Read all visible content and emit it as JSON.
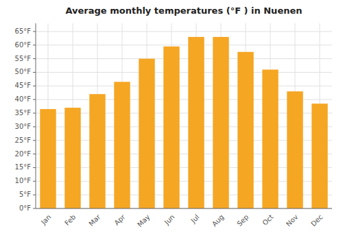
{
  "chart_data": {
    "type": "bar",
    "title": "Average monthly temperatures (°F ) in Nuenen",
    "categories": [
      "Jan",
      "Feb",
      "Mar",
      "Apr",
      "May",
      "Jun",
      "Jul",
      "Aug",
      "Sep",
      "Oct",
      "Nov",
      "Dec"
    ],
    "values": [
      36.5,
      37.0,
      42.0,
      46.5,
      55.0,
      59.5,
      63.0,
      63.0,
      57.5,
      51.0,
      43.0,
      38.5
    ],
    "color": "#F5A623",
    "ylim": [
      0,
      68
    ],
    "yticks": [
      {
        "value": 0,
        "label": "0°F"
      },
      {
        "value": 5,
        "label": "5°F"
      },
      {
        "value": 10,
        "label": "10°F"
      },
      {
        "value": 15,
        "label": "15°F"
      },
      {
        "value": 20,
        "label": "20°F"
      },
      {
        "value": 25,
        "label": "25°F"
      },
      {
        "value": 30,
        "label": "30°F"
      },
      {
        "value": 35,
        "label": "35°F"
      },
      {
        "value": 40,
        "label": "40°F"
      },
      {
        "value": 45,
        "label": "45°F"
      },
      {
        "value": 50,
        "label": "50°F"
      },
      {
        "value": 55,
        "label": "55°F"
      },
      {
        "value": 60,
        "label": "60°F"
      },
      {
        "value": 65,
        "label": "65°F"
      }
    ],
    "grid": true
  }
}
